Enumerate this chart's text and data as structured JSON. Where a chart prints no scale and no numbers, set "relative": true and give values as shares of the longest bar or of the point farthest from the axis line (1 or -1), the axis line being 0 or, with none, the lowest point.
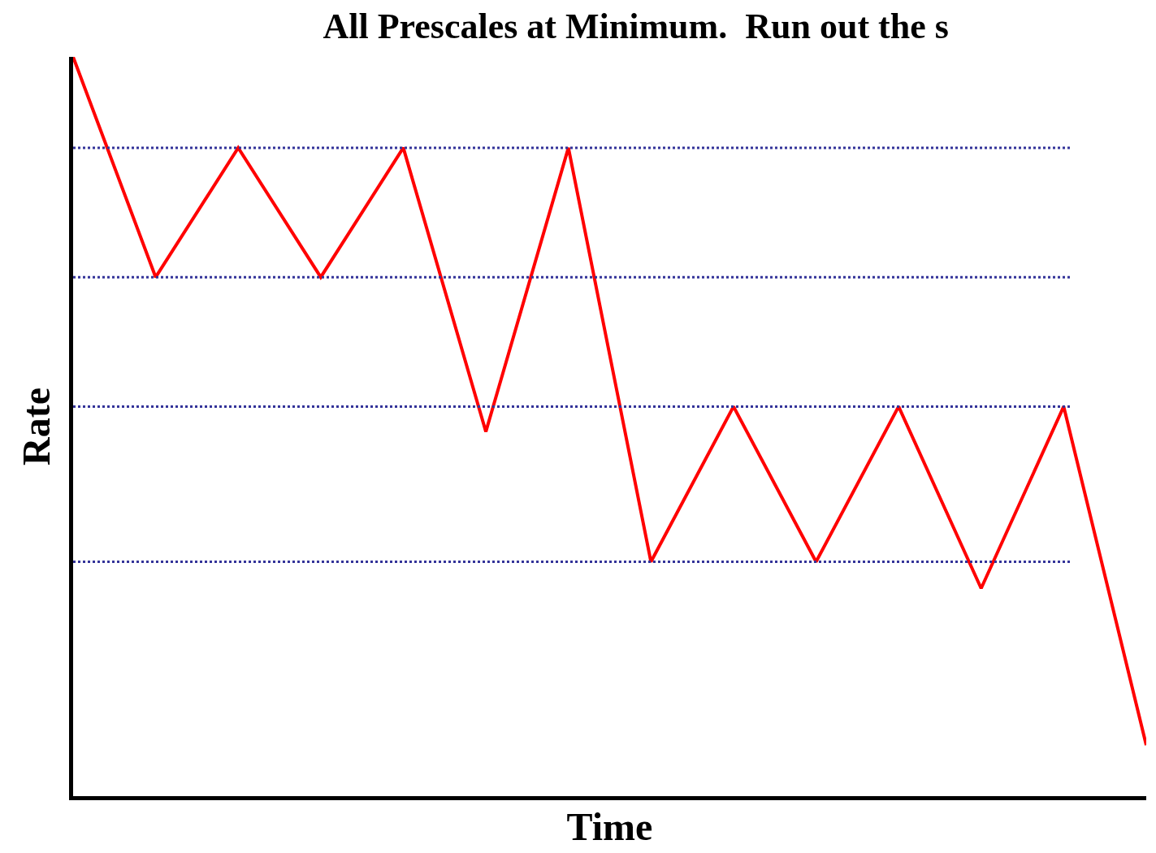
{
  "chart_data": {
    "type": "line",
    "title": "All Prescales at Minimum.  Run out the s",
    "xlabel": "Time",
    "ylabel": "Rate",
    "relative": true,
    "categories": [
      null,
      null,
      null,
      null,
      null,
      null,
      null,
      null,
      null,
      null,
      null,
      null,
      null,
      null
    ],
    "series": [
      {
        "color": "#ff0000",
        "values": [
          1.0,
          0.702,
          0.877,
          0.702,
          0.877,
          0.493,
          0.877,
          0.317,
          0.527,
          0.317,
          0.527,
          0.281,
          0.527,
          0.069
        ]
      }
    ],
    "ref_lines": [
      {
        "axis": "y",
        "value": 0.877,
        "color": "#333399",
        "line_style": "dotted"
      },
      {
        "axis": "y",
        "value": 0.702,
        "color": "#333399",
        "line_style": "dotted"
      },
      {
        "axis": "y",
        "value": 0.527,
        "color": "#333399",
        "line_style": "dotted"
      },
      {
        "axis": "y",
        "value": 0.317,
        "color": "#333399",
        "line_style": "dotted"
      }
    ],
    "marker": "none",
    "line_style": "solid"
  }
}
